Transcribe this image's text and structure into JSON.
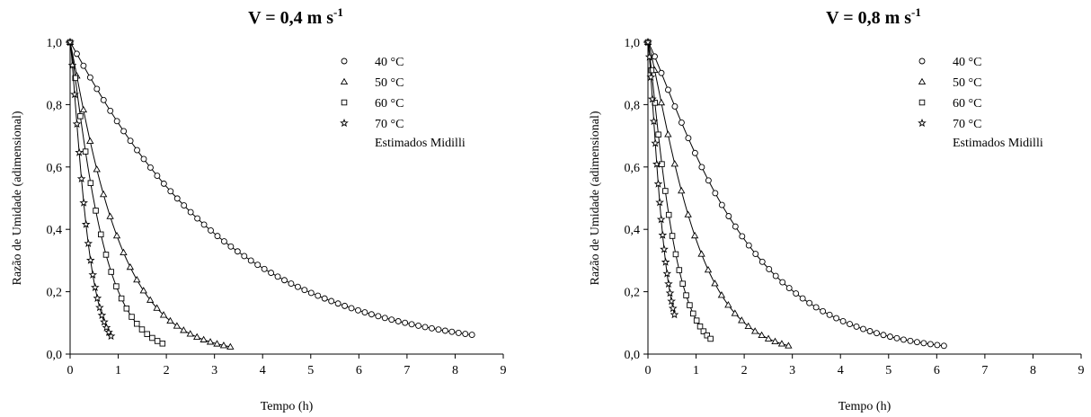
{
  "chart_data": [
    {
      "type": "line",
      "title": "V = 0,4 m s",
      "title_sup": "-1",
      "xlabel": "Tempo (h)",
      "ylabel": "Razão de Umidade (adimensional)",
      "xlim": [
        0,
        9
      ],
      "ylim": [
        0,
        1.0
      ],
      "x_ticks": [
        "0",
        "1",
        "2",
        "3",
        "4",
        "5",
        "6",
        "7",
        "8",
        "9"
      ],
      "y_ticks": [
        "0,0",
        "0,2",
        "0,4",
        "0,6",
        "0,8",
        "1,0"
      ],
      "legend_position": "top-right",
      "fit_label": "Estimados Midilli",
      "series": [
        {
          "name": "40 °C",
          "marker": "circle",
          "k": 0.3,
          "n": 1.05,
          "x_max": 8.35
        },
        {
          "name": "50 °C",
          "marker": "triangle",
          "k": 1.0,
          "n": 1.1,
          "x_max": 3.33
        },
        {
          "name": "60 °C",
          "marker": "square",
          "k": 1.6,
          "n": 1.15,
          "x_max": 1.92
        },
        {
          "name": "70 °C",
          "marker": "star",
          "k": 3.5,
          "n": 1.25,
          "x_max": 0.85
        }
      ]
    },
    {
      "type": "line",
      "title": "V = 0,8 m s",
      "title_sup": "-1",
      "xlabel": "Tempo (h)",
      "ylabel": "Razão de Umidade (adimensional)",
      "xlim": [
        0,
        9
      ],
      "ylim": [
        0,
        1.0
      ],
      "x_ticks": [
        "0",
        "1",
        "2",
        "3",
        "4",
        "5",
        "6",
        "7",
        "8",
        "9"
      ],
      "y_ticks": [
        "0,0",
        "0,2",
        "0,4",
        "0,6",
        "0,8",
        "1,0"
      ],
      "legend_position": "top-right",
      "fit_label": "Estimados Midilli",
      "series": [
        {
          "name": "40 °C",
          "marker": "circle",
          "k": 0.45,
          "n": 1.15,
          "x_max": 6.15
        },
        {
          "name": "50 °C",
          "marker": "triangle",
          "k": 1.0,
          "n": 1.2,
          "x_max": 2.92
        },
        {
          "name": "60 °C",
          "marker": "square",
          "k": 2.2,
          "n": 1.2,
          "x_max": 1.3
        },
        {
          "name": "70 °C",
          "marker": "star",
          "k": 4.5,
          "n": 1.3,
          "x_max": 0.55
        }
      ]
    }
  ]
}
